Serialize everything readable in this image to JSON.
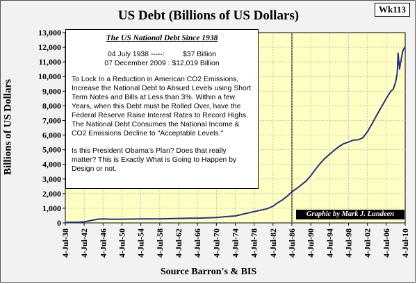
{
  "tag": "Wk113",
  "chart_data": {
    "type": "line",
    "title": "US Debt (Billions of US Dollars)",
    "ylabel": "Billions of US Dollars",
    "xlabel": "Source Barron's & BIS",
    "ylim": [
      0,
      13000
    ],
    "xlim": [
      1938,
      2010
    ],
    "yticks": [
      0,
      1000,
      2000,
      3000,
      4000,
      5000,
      6000,
      7000,
      8000,
      9000,
      10000,
      11000,
      12000,
      13000
    ],
    "ytick_labels": [
      "0",
      "1,000",
      "2,000",
      "3,000",
      "4,000",
      "5,000",
      "6,000",
      "7,000",
      "8,000",
      "9,000",
      "10,000",
      "11,000",
      "12,000",
      "13,000"
    ],
    "xticks": [
      1938,
      1942,
      1946,
      1950,
      1954,
      1958,
      1962,
      1966,
      1970,
      1974,
      1978,
      1982,
      1986,
      1990,
      1994,
      1998,
      2002,
      2006,
      2010
    ],
    "xtick_labels": [
      "4-Jul-38",
      "4-Jul-42",
      "4-Jul-46",
      "4-Jul-50",
      "4-Jul-54",
      "4-Jul-58",
      "4-Jul-62",
      "4-Jul-66",
      "4-Jul-70",
      "4-Jul-74",
      "4-Jul-78",
      "4-Jul-82",
      "4-Jul-86",
      "4-Jul-90",
      "4-Jul-94",
      "4-Jul-98",
      "4-Jul-02",
      "4-Jul-06",
      "4-Jul-10"
    ],
    "grid": true,
    "highlight_start": 1986,
    "line_color": "#1f2f88",
    "plot_bg": "#ffffc4",
    "series": [
      {
        "x": [
          1938,
          1940,
          1941,
          1942,
          1943,
          1944,
          1945,
          1946,
          1948,
          1950,
          1952,
          1954,
          1956,
          1958,
          1960,
          1962,
          1964,
          1966,
          1968,
          1970,
          1972,
          1974,
          1976,
          1978,
          1980,
          1981,
          1982,
          1983,
          1984,
          1985,
          1986,
          1987,
          1988,
          1989,
          1990,
          1991,
          1992,
          1993,
          1994,
          1995,
          1996,
          1997,
          1998,
          1999,
          2000,
          2001,
          2002,
          2003,
          2004,
          2005,
          2006,
          2007,
          2007.5,
          2008,
          2008.3,
          2008.5,
          2008.8,
          2009,
          2009.5,
          2009.93
        ],
        "y": [
          37,
          43,
          49,
          72,
          137,
          201,
          259,
          270,
          252,
          257,
          259,
          271,
          273,
          276,
          291,
          303,
          317,
          320,
          348,
          371,
          427,
          475,
          621,
          772,
          908,
          998,
          1142,
          1377,
          1572,
          1823,
          2125,
          2350,
          2602,
          2857,
          3233,
          3665,
          4065,
          4411,
          4693,
          4974,
          5225,
          5413,
          5526,
          5656,
          5674,
          5807,
          6228,
          6783,
          7379,
          7933,
          8507,
          9008,
          9150,
          9650,
          10200,
          11600,
          10500,
          10900,
          11750,
          12019
        ]
      }
    ]
  },
  "info_box": {
    "title": "The US National Debt Since 1938",
    "fact1": "04 July 1938 -----:         $37 Billion",
    "fact2": "07 December 2009 : $12,019 Billion",
    "paragraph": "To Lock In a Reduction in American CO2 Emissions, Increase the National Debt to Absurd Levels using Short Term Notes and Bills at Less than 3%.  Within a few Years, when this Debt must be Rolled Over, have the Federal Reserve Raise Interest Rates to Record Highs.  The National Debt Consumes the National Income & CO2 Emissions Decline to \"Acceptable Levels.\"",
    "paragraph2": "Is this President Obama's Plan?  Does that really matter? This is Exactly What is Going to Happen by Design or not."
  },
  "credit": "Graphic by Mark J. Lundeen"
}
